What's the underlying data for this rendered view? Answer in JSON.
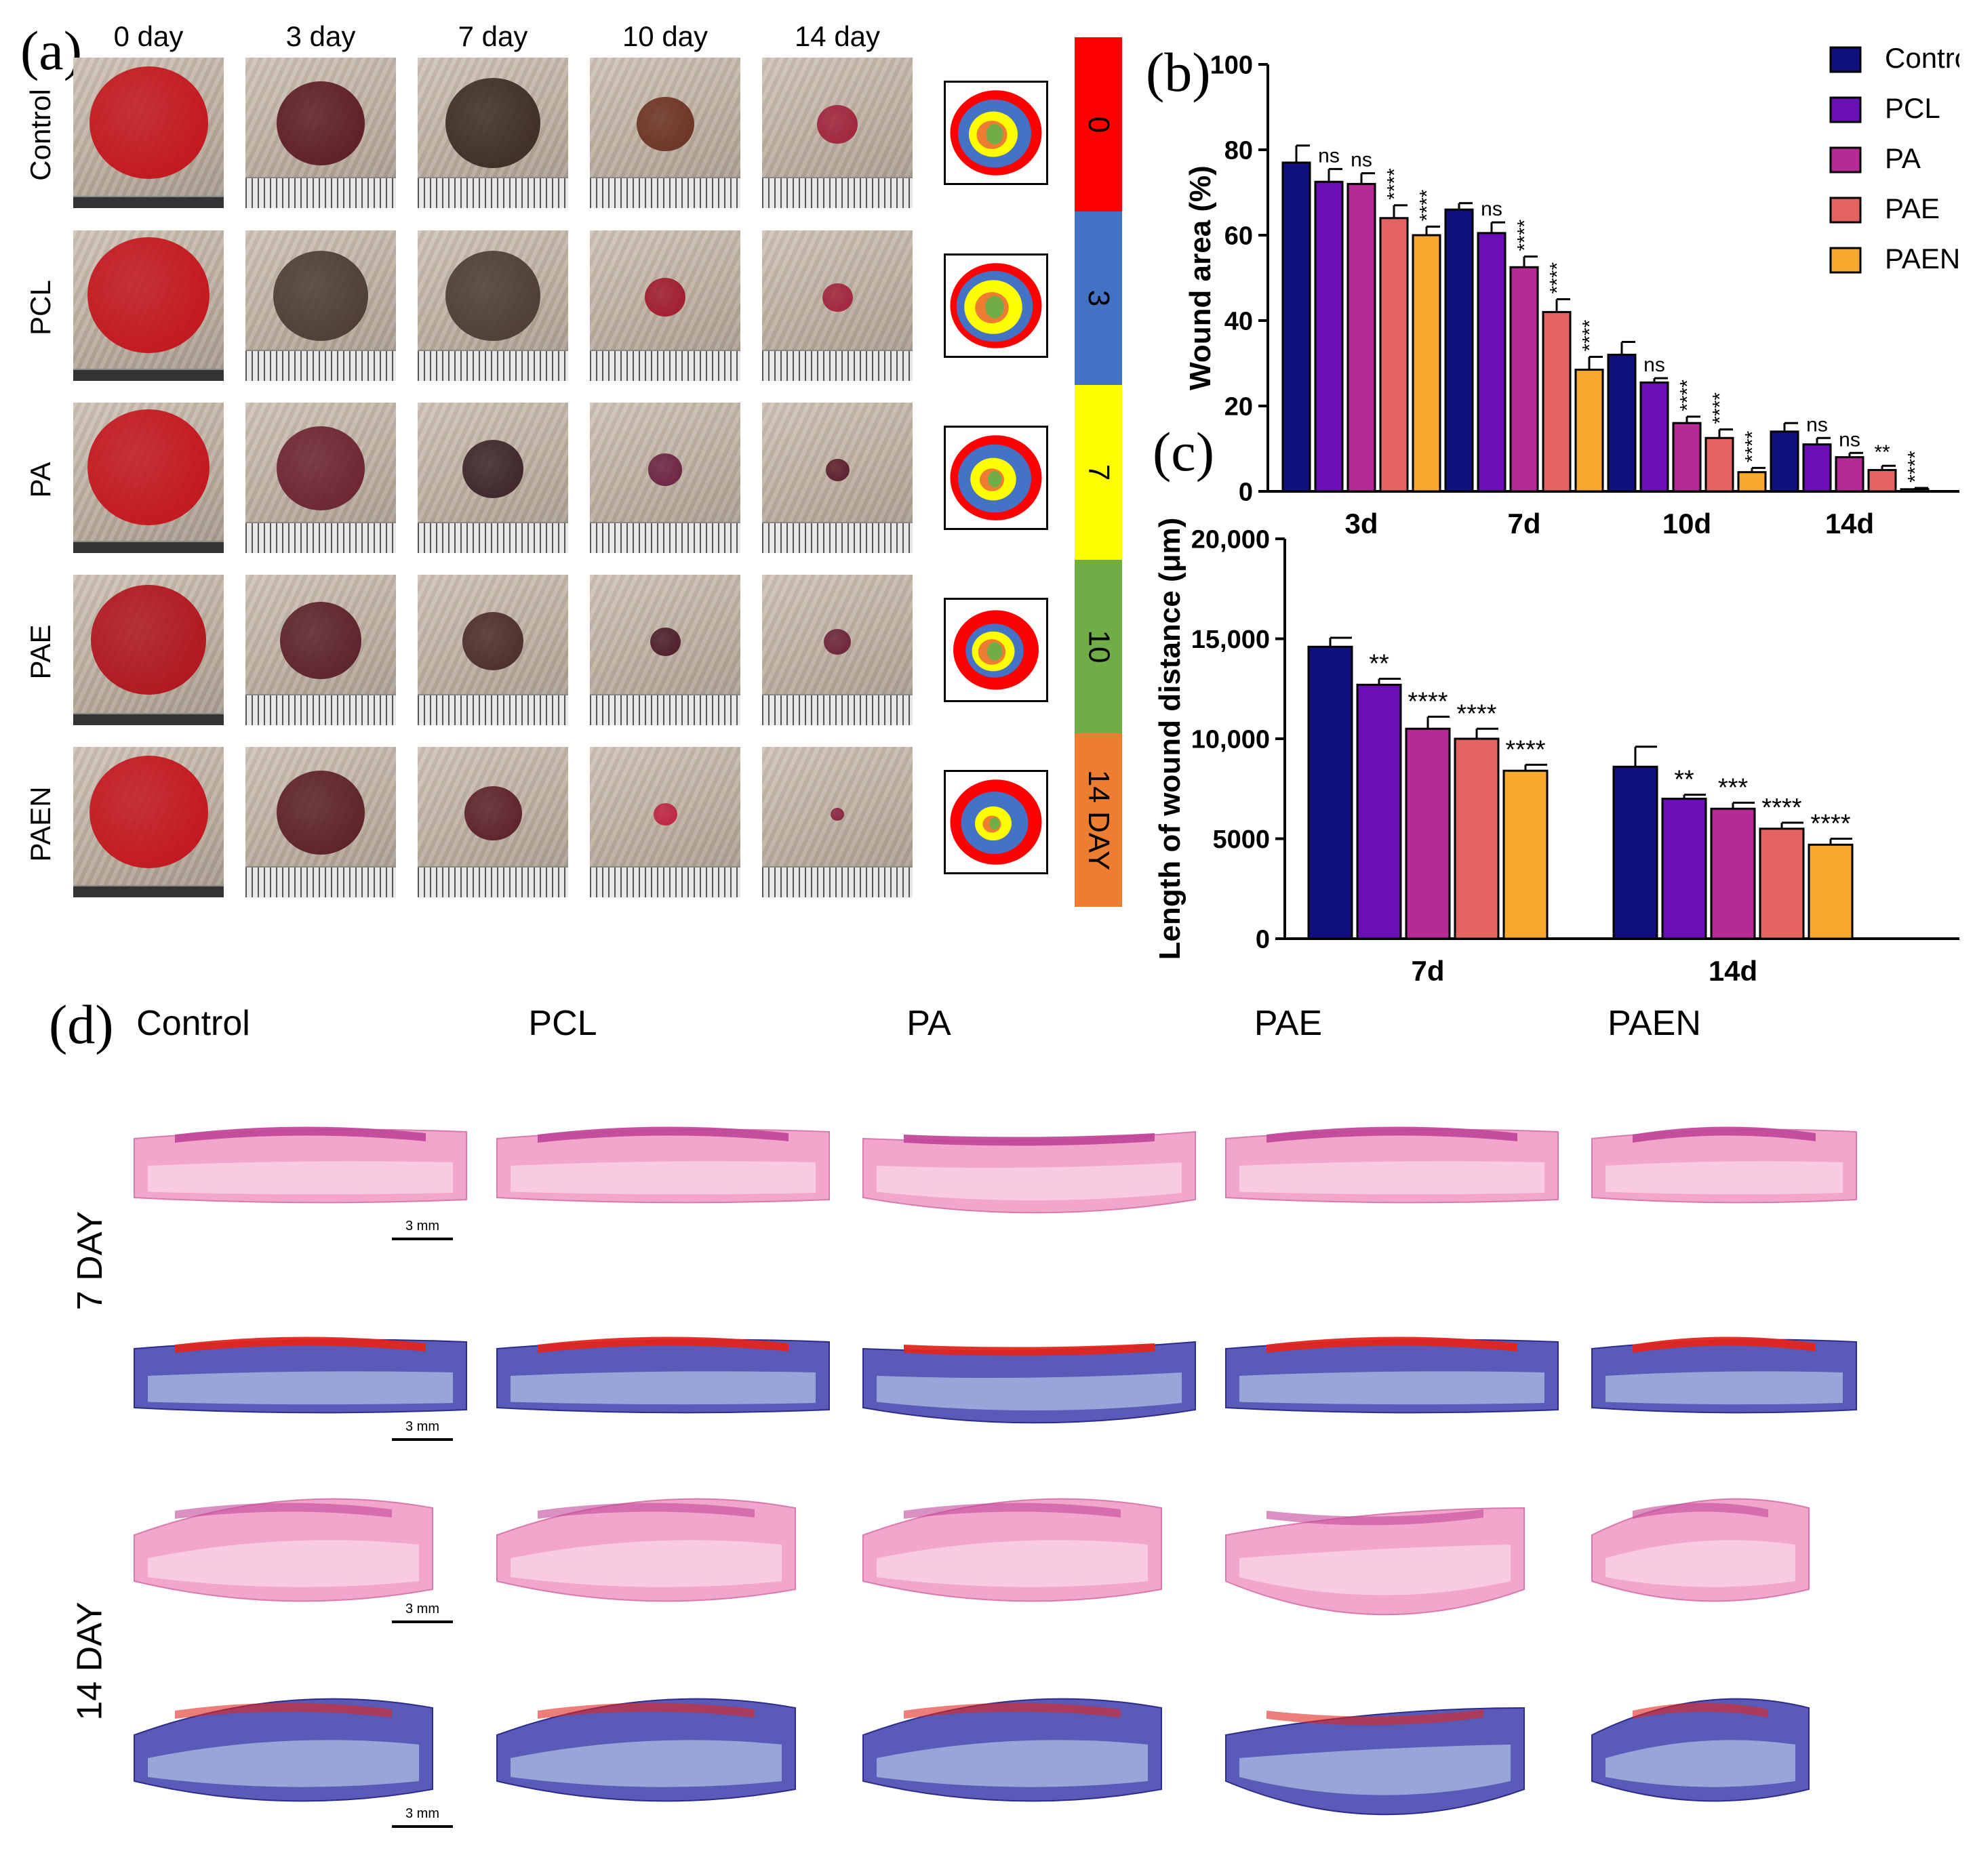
{
  "panel_a": {
    "letter": "(a)",
    "days": [
      "0 day",
      "3 day",
      "7 day",
      "10 day",
      "14 day"
    ],
    "groups": [
      "Control",
      "PCL",
      "PA",
      "PAE",
      "PAEN"
    ],
    "legend": [
      {
        "label": "0",
        "color": "#ff0000"
      },
      {
        "label": "3",
        "color": "#4472c4"
      },
      {
        "label": "7",
        "color": "#ffff00"
      },
      {
        "label": "10",
        "color": "#70ad47"
      },
      {
        "label": "14 DAY",
        "color": "#ed7d31"
      }
    ]
  },
  "panel_b_letter": "(b)",
  "panel_c_letter": "(c)",
  "panel_d": {
    "letter": "(d)",
    "groups": [
      "Control",
      "PCL",
      "PA",
      "PAE",
      "PAEN"
    ],
    "rows": [
      {
        "label": "7 DAY",
        "color": "#ff85b0"
      },
      {
        "label": "14 DAY",
        "color": "#c080f5"
      }
    ],
    "scale_bar": "3 mm"
  },
  "chart_data": [
    {
      "type": "bar",
      "ylabel": "Wound area (%)",
      "ylim": [
        0,
        100
      ],
      "yticks": [
        "0",
        "20",
        "40",
        "60",
        "80",
        "100"
      ],
      "categories": [
        "3d",
        "7d",
        "10d",
        "14d"
      ],
      "legend_position": "top-right",
      "series": [
        {
          "name": "Control",
          "color": "#10107f",
          "values": [
            77,
            66,
            32,
            14
          ],
          "errors": [
            4,
            1.5,
            3,
            2
          ]
        },
        {
          "name": "PCL",
          "color": "#6a0fb5",
          "values": [
            72.5,
            60.5,
            25.5,
            11
          ],
          "errors": [
            3,
            2.5,
            1,
            1.5
          ]
        },
        {
          "name": "PA",
          "color": "#b52a94",
          "values": [
            72,
            52.5,
            16,
            8
          ],
          "errors": [
            2.5,
            2.5,
            1.5,
            1
          ]
        },
        {
          "name": "PAE",
          "color": "#e36461",
          "values": [
            64,
            42,
            12.5,
            5
          ],
          "errors": [
            3,
            3,
            2,
            1
          ]
        },
        {
          "name": "PAEN",
          "color": "#f7a82e",
          "values": [
            60,
            28.5,
            4.5,
            0.5
          ],
          "errors": [
            2,
            3,
            1,
            0.3
          ]
        }
      ],
      "significance": [
        [
          "",
          "ns",
          "ns",
          "****",
          "****"
        ],
        [
          "",
          "ns",
          "****",
          "****",
          "****"
        ],
        [
          "",
          "ns",
          "****",
          "****",
          "****"
        ],
        [
          "",
          "ns",
          "ns",
          "**",
          "****"
        ]
      ]
    },
    {
      "type": "bar",
      "ylabel": "Length of wound distance (μm)",
      "ylim": [
        0,
        20000
      ],
      "yticks": [
        "0",
        "5000",
        "10,000",
        "15,000",
        "20,000"
      ],
      "categories": [
        "7d",
        "14d"
      ],
      "series": [
        {
          "name": "Control",
          "color": "#10107f",
          "values": [
            14600,
            8600
          ],
          "errors": [
            450,
            1000
          ]
        },
        {
          "name": "PCL",
          "color": "#6a0fb5",
          "values": [
            12700,
            7000
          ],
          "errors": [
            300,
            200
          ]
        },
        {
          "name": "PA",
          "color": "#b52a94",
          "values": [
            10500,
            6500
          ],
          "errors": [
            600,
            300
          ]
        },
        {
          "name": "PAE",
          "color": "#e36461",
          "values": [
            10000,
            5500
          ],
          "errors": [
            500,
            300
          ]
        },
        {
          "name": "PAEN",
          "color": "#f7a82e",
          "values": [
            8400,
            4700
          ],
          "errors": [
            300,
            300
          ]
        }
      ],
      "significance": [
        [
          "",
          "**",
          "****",
          "****",
          "****"
        ],
        [
          "",
          "**",
          "***",
          "****",
          "****"
        ]
      ]
    }
  ]
}
